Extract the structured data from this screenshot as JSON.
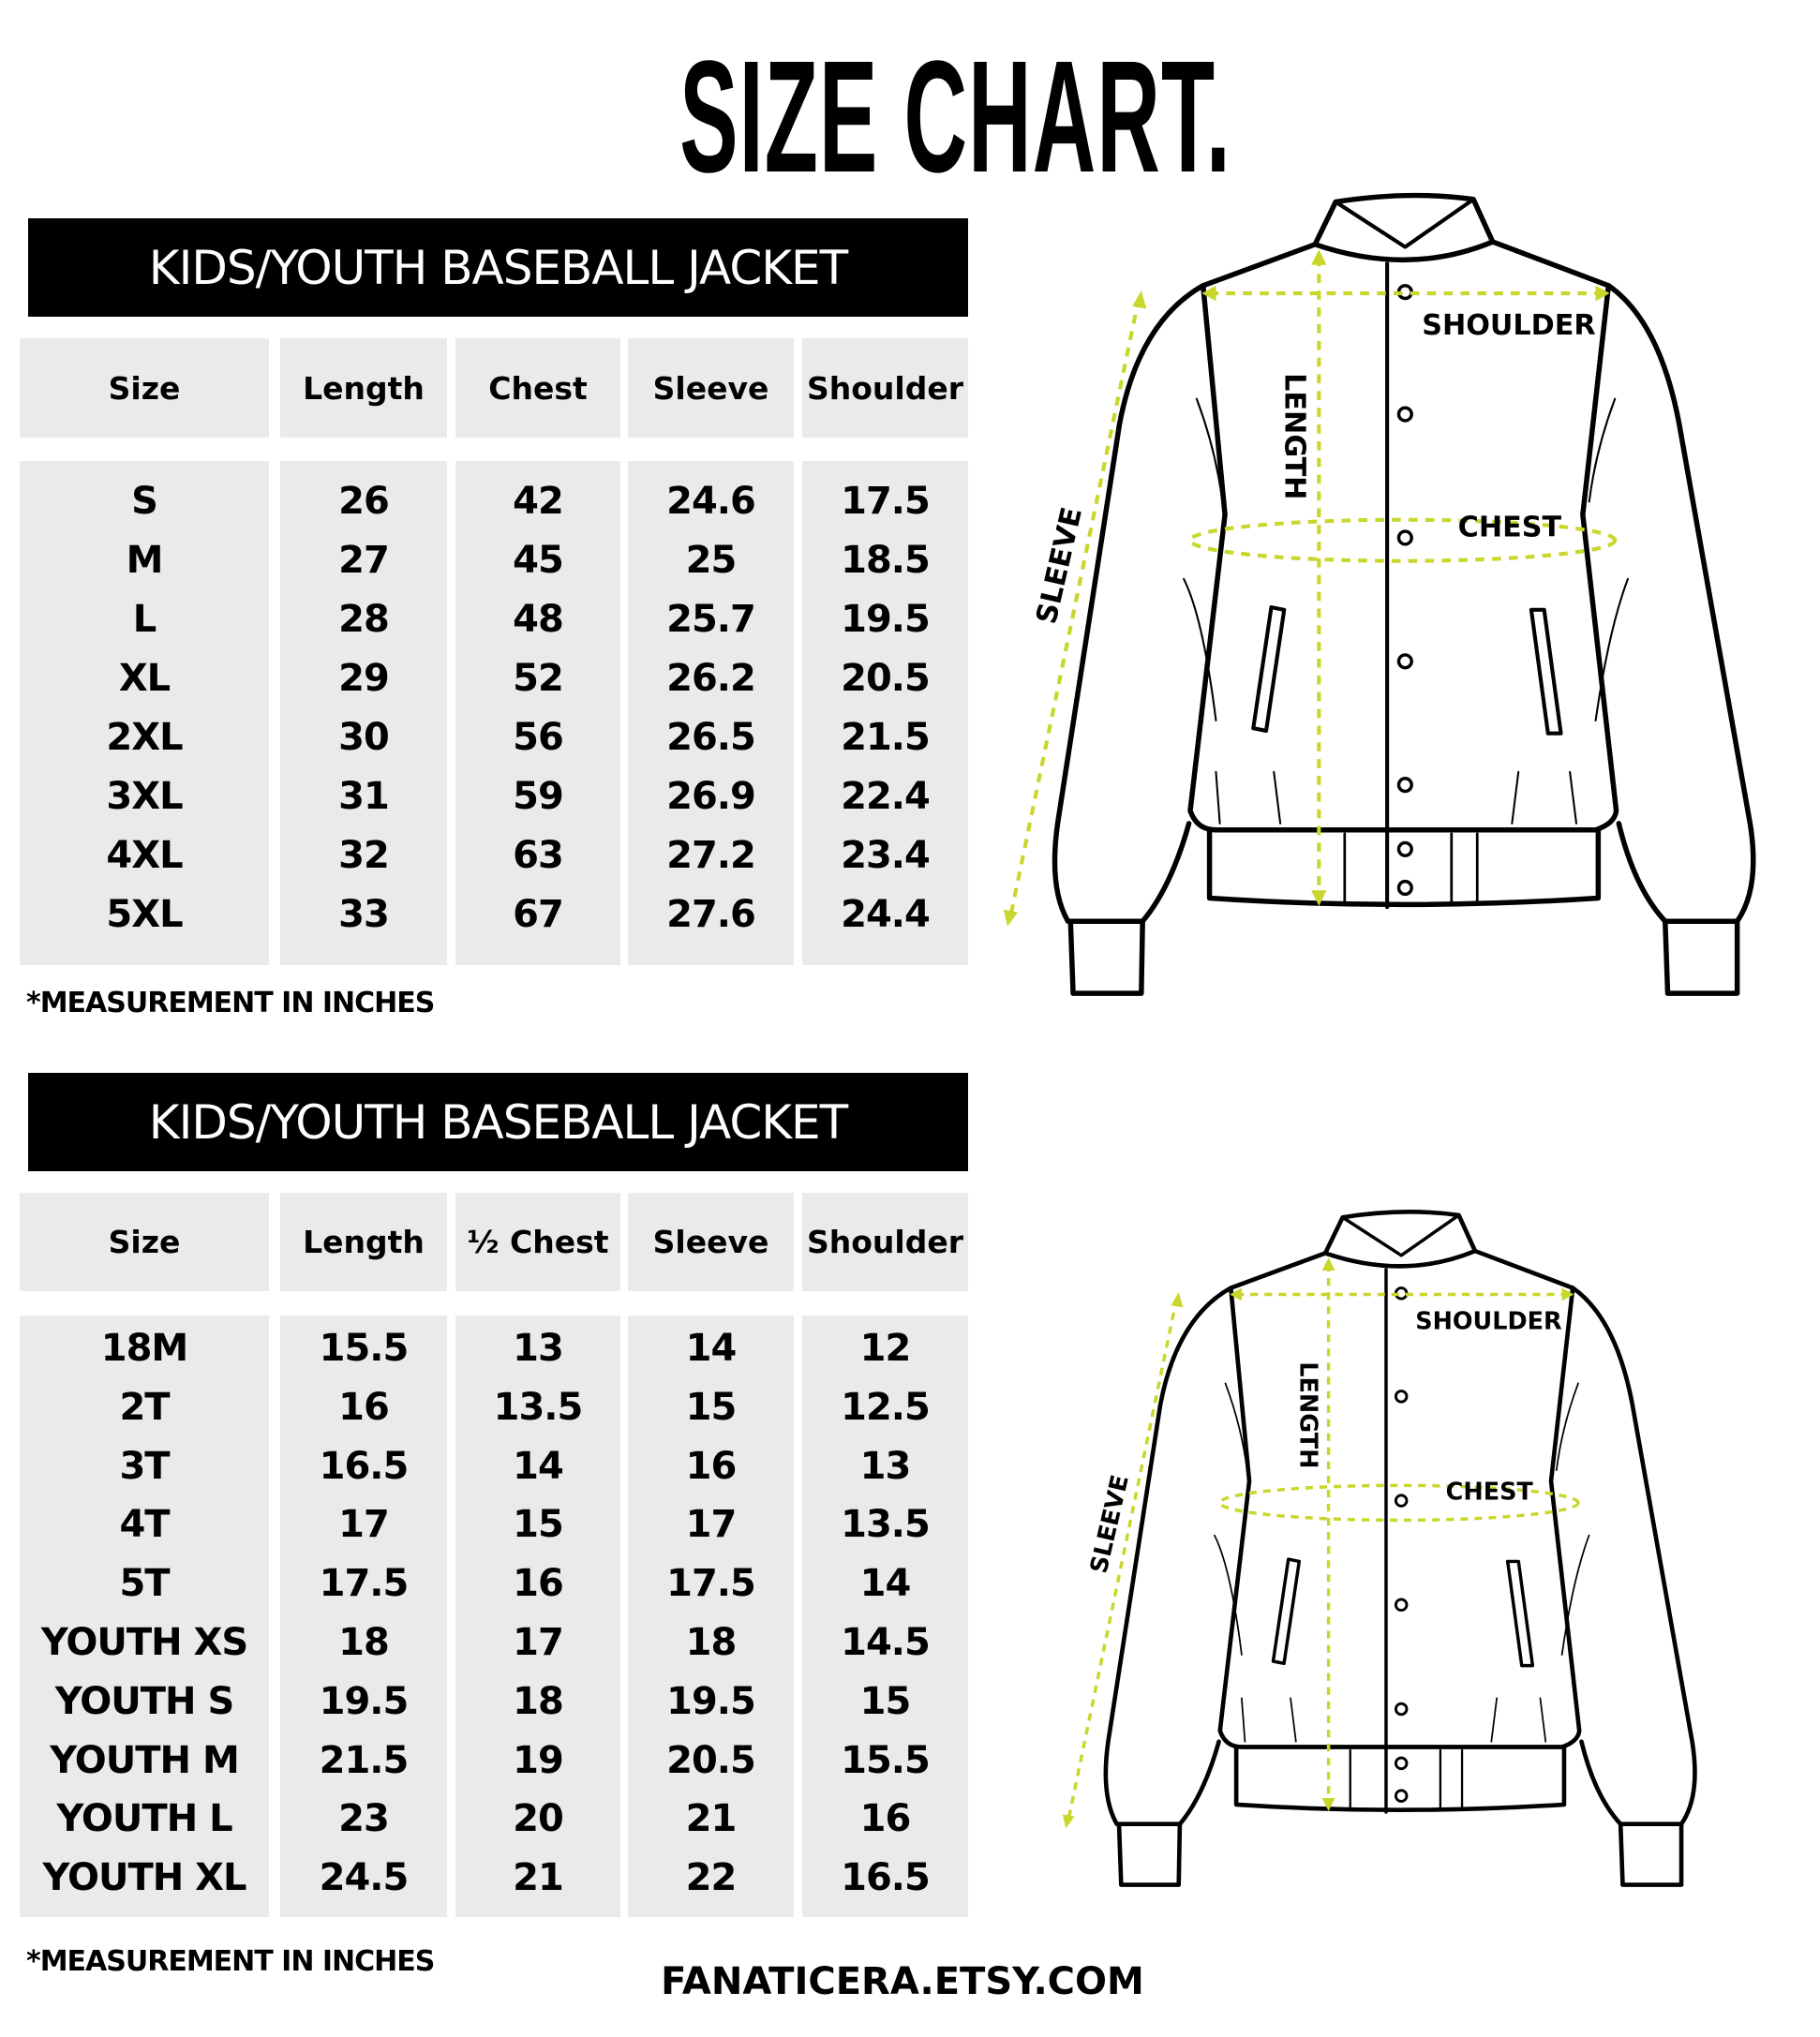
{
  "title": "SIZE CHART.",
  "tables": [
    {
      "banner": "KIDS/YOUTH BASEBALL JACKET",
      "headers": [
        "Size",
        "Length",
        "Chest",
        "Sleeve",
        "Shoulder"
      ],
      "rows": [
        [
          "S",
          "26",
          "42",
          "24.6",
          "17.5"
        ],
        [
          "M",
          "27",
          "45",
          "25",
          "18.5"
        ],
        [
          "L",
          "28",
          "48",
          "25.7",
          "19.5"
        ],
        [
          "XL",
          "29",
          "52",
          "26.2",
          "20.5"
        ],
        [
          "2XL",
          "30",
          "56",
          "26.5",
          "21.5"
        ],
        [
          "3XL",
          "31",
          "59",
          "26.9",
          "22.4"
        ],
        [
          "4XL",
          "32",
          "63",
          "27.2",
          "23.4"
        ],
        [
          "5XL",
          "33",
          "67",
          "27.6",
          "24.4"
        ]
      ],
      "note": "*MEASUREMENT IN INCHES"
    },
    {
      "banner": "KIDS/YOUTH BASEBALL JACKET",
      "headers": [
        "Size",
        "Length",
        "½ Chest",
        "Sleeve",
        "Shoulder"
      ],
      "rows": [
        [
          "18M",
          "15.5",
          "13",
          "14",
          "12"
        ],
        [
          "2T",
          "16",
          "13.5",
          "15",
          "12.5"
        ],
        [
          "3T",
          "16.5",
          "14",
          "16",
          "13"
        ],
        [
          "4T",
          "17",
          "15",
          "17",
          "13.5"
        ],
        [
          "5T",
          "17.5",
          "16",
          "17.5",
          "14"
        ],
        [
          "YOUTH XS",
          "18",
          "17",
          "18",
          "14.5"
        ],
        [
          "YOUTH S",
          "19.5",
          "18",
          "19.5",
          "15"
        ],
        [
          "YOUTH M",
          "21.5",
          "19",
          "20.5",
          "15.5"
        ],
        [
          "YOUTH L",
          "23",
          "20",
          "21",
          "16"
        ],
        [
          "YOUTH XL",
          "24.5",
          "21",
          "22",
          "16.5"
        ]
      ],
      "note": "*MEASUREMENT IN INCHES"
    }
  ],
  "diagram_labels": {
    "shoulder": "SHOULDER",
    "length": "LENGTH",
    "chest": "CHEST",
    "sleeve": "SLEEVE"
  },
  "colors": {
    "banner": "#000000",
    "cell_bg": "#e8eaeb",
    "measure_line": "#c9d62b"
  },
  "footer": "FANATICERA.ETSY.COM"
}
